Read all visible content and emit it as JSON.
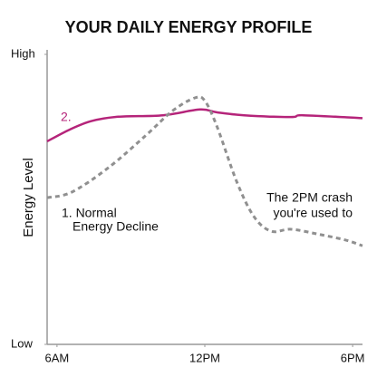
{
  "chart_data": {
    "type": "line",
    "title": "YOUR DAILY ENERGY PROFILE",
    "ylabel": "Energy Level",
    "xlim": [
      5.6,
      18.4
    ],
    "xticks": [
      {
        "value": 6,
        "label": "6AM"
      },
      {
        "value": 12,
        "label": "12PM"
      },
      {
        "value": 18,
        "label": "6PM"
      }
    ],
    "ylim": [
      0,
      100
    ],
    "yticks": [
      {
        "value": 0,
        "label": "Low"
      },
      {
        "value": 100,
        "label": "High"
      }
    ],
    "series": [
      {
        "name": "2.",
        "color": "#b5247a",
        "dashed": false,
        "x": [
          5.6,
          6.5,
          7.4,
          8.5,
          10.3,
          11.8,
          12.5,
          13.6,
          15.5,
          16.0,
          18.4
        ],
        "values": [
          70,
          74,
          77,
          78.5,
          79,
          81,
          80,
          79,
          78.4,
          79,
          78
        ]
      },
      {
        "color": "#909090",
        "dashed": true,
        "x": [
          5.6,
          6.6,
          8.1,
          9.6,
          10.7,
          11.6,
          12.0,
          12.5,
          13.3,
          14.0,
          14.7,
          15.5,
          16.6,
          17.7,
          18.4
        ],
        "values": [
          50.6,
          52.5,
          61,
          72,
          80.6,
          85,
          84,
          75,
          56,
          44,
          39,
          39.7,
          38,
          36,
          34
        ]
      }
    ],
    "annotations": [
      [
        "1. Normal",
        "Energy Decline"
      ],
      [
        "The 2PM crash",
        "you're used to"
      ]
    ]
  }
}
